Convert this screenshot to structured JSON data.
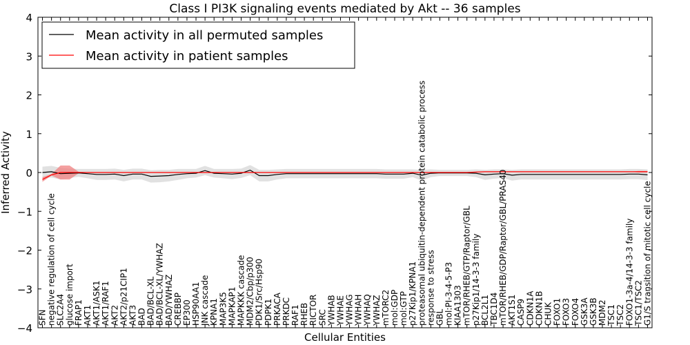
{
  "chart_data": {
    "type": "line",
    "title": "Class I PI3K signaling events mediated by Akt -- 36 samples",
    "xlabel": "Cellular Entities",
    "ylabel": "Inferred Activity",
    "ylim": [
      -4,
      4
    ],
    "yticks": [
      -4,
      -3,
      -2,
      -1,
      0,
      1,
      2,
      3,
      4
    ],
    "ytick_labels": [
      "−4",
      "−3",
      "−2",
      "−1",
      "0",
      "1",
      "2",
      "3",
      "4"
    ],
    "legend_placement": "top-left",
    "grid": false,
    "colors": {
      "permuted": "#000000",
      "patient": "#ff0000",
      "permuted_band": "#c8c8c8",
      "patient_band": "#f08080"
    },
    "categories": [
      "SFN",
      "negative regulation of cell cycle",
      "SLC2A4",
      "glucose import",
      "FRAP1",
      "AKT1",
      "AKT1/ASK1",
      "AKT1/RAF1",
      "AKT2",
      "AKT2/p21CIP1",
      "AKT3",
      "BAD",
      "BAD/BCL-XL",
      "BAD/BCL-XL/YWHAZ",
      "BAD/YWHAZ",
      "CREBBP",
      "EP300",
      "HSP90AA1",
      "JNK cascade",
      "KPNA1",
      "MAP3K5",
      "MAPKAP1",
      "MAPKKK cascade",
      "MDM2/Cbp/p300",
      "PDK1/Src/Hsp90",
      "PDPK1",
      "PRKACA",
      "PRKDC",
      "RAF1",
      "RHEB",
      "RICTOR",
      "SRC",
      "YWHAB",
      "YWHAE",
      "YWHAG",
      "YWHAH",
      "YWHAQ",
      "YWHAZ",
      "mTORC2",
      "mol:GDP",
      "mol:GTP",
      "p27Kip1/KPNA1",
      "proteasomal ubiquitin-dependent protein catabolic process",
      "response to stress",
      "GBL",
      "mol:PI-3-4-5-P3",
      "KIAA1303",
      "mTOR/RHEB/GTP/Raptor/GBL",
      "p27Kip1/14-3-3 family",
      "BCL2L1",
      "TBC1D4",
      "mTOR/RHEB/GDP/Raptor/GBL/PRAS40",
      "AKT1S1",
      "CASP9",
      "CDKN1A",
      "CDKN1B",
      "CHUK",
      "FOXO1",
      "FOXO3",
      "FOXO4",
      "GSK3A",
      "GSK3B",
      "MDM2",
      "TSC1",
      "TSC2",
      "FOXO1-3a-4/14-3-3 family",
      "TSC1/TSC2",
      "G1/S transition of mitotic cell cycle"
    ],
    "series": [
      {
        "name": "Mean activity in all permuted samples",
        "values": [
          0.0,
          0.02,
          -0.03,
          -0.02,
          -0.01,
          -0.03,
          -0.05,
          -0.05,
          -0.04,
          -0.08,
          -0.04,
          -0.04,
          -0.1,
          -0.09,
          -0.08,
          -0.05,
          -0.03,
          -0.02,
          0.05,
          -0.02,
          -0.03,
          -0.04,
          -0.02,
          0.06,
          -0.08,
          -0.08,
          -0.05,
          -0.03,
          -0.03,
          -0.03,
          -0.03,
          -0.03,
          -0.03,
          -0.03,
          -0.03,
          -0.03,
          -0.03,
          -0.03,
          -0.04,
          -0.04,
          -0.04,
          -0.02,
          -0.07,
          -0.02,
          -0.01,
          -0.01,
          -0.01,
          -0.01,
          -0.02,
          -0.06,
          -0.04,
          -0.03,
          -0.07,
          -0.05,
          -0.05,
          -0.05,
          -0.05,
          -0.05,
          -0.05,
          -0.05,
          -0.05,
          -0.05,
          -0.05,
          -0.05,
          -0.05,
          -0.04,
          -0.04,
          -0.06
        ],
        "band": [
          0.15,
          0.15,
          0.15,
          0.12,
          0.1,
          0.12,
          0.14,
          0.14,
          0.14,
          0.15,
          0.14,
          0.14,
          0.16,
          0.16,
          0.15,
          0.14,
          0.12,
          0.11,
          0.12,
          0.11,
          0.12,
          0.13,
          0.12,
          0.13,
          0.15,
          0.15,
          0.13,
          0.12,
          0.12,
          0.12,
          0.12,
          0.12,
          0.12,
          0.12,
          0.12,
          0.12,
          0.12,
          0.12,
          0.12,
          0.12,
          0.12,
          0.1,
          0.14,
          0.1,
          0.08,
          0.08,
          0.08,
          0.08,
          0.1,
          0.13,
          0.12,
          0.11,
          0.14,
          0.13,
          0.13,
          0.13,
          0.13,
          0.13,
          0.13,
          0.13,
          0.13,
          0.13,
          0.13,
          0.13,
          0.13,
          0.13,
          0.13,
          0.14
        ]
      },
      {
        "name": "Mean activity in patient samples",
        "values": [
          -0.18,
          -0.06,
          0.0,
          0.0,
          0.0,
          0.0,
          0.0,
          0.0,
          0.0,
          0.0,
          0.0,
          0.0,
          0.0,
          0.0,
          0.0,
          0.0,
          0.0,
          0.0,
          0.0,
          0.0,
          0.0,
          0.0,
          0.0,
          0.0,
          0.0,
          0.0,
          0.0,
          0.0,
          0.0,
          0.0,
          0.0,
          0.0,
          0.0,
          0.0,
          0.0,
          0.0,
          0.0,
          0.0,
          0.0,
          0.0,
          0.0,
          0.0,
          0.0,
          0.0,
          0.0,
          0.0,
          0.0,
          0.0,
          0.01,
          0.02,
          0.02,
          0.02,
          0.02,
          0.02,
          0.02,
          0.02,
          0.02,
          0.02,
          0.02,
          0.02,
          0.02,
          0.02,
          0.02,
          0.02,
          0.02,
          0.02,
          0.02,
          0.02
        ],
        "band": [
          0.06,
          0.02,
          0.18,
          0.18,
          0.02,
          0.0,
          0.0,
          0.0,
          0.0,
          0.0,
          0.0,
          0.0,
          0.0,
          0.0,
          0.0,
          0.0,
          0.0,
          0.0,
          0.0,
          0.0,
          0.0,
          0.0,
          0.0,
          0.0,
          0.0,
          0.0,
          0.0,
          0.0,
          0.0,
          0.0,
          0.0,
          0.0,
          0.0,
          0.0,
          0.0,
          0.0,
          0.0,
          0.0,
          0.0,
          0.0,
          0.0,
          0.0,
          0.0,
          0.0,
          0.0,
          0.0,
          0.0,
          0.0,
          0.0,
          0.0,
          0.0,
          0.0,
          0.0,
          0.0,
          0.0,
          0.0,
          0.0,
          0.0,
          0.0,
          0.0,
          0.0,
          0.0,
          0.0,
          0.0,
          0.0,
          0.0,
          0.02,
          0.02
        ]
      }
    ]
  }
}
